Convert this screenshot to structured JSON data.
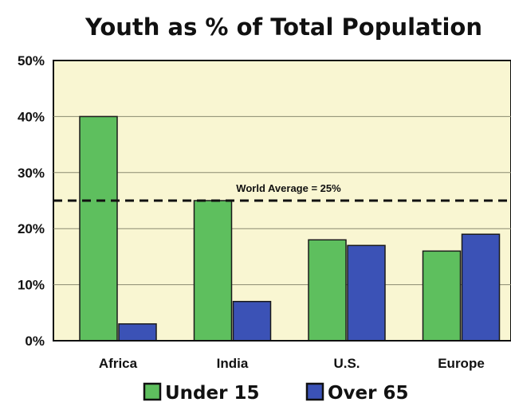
{
  "chart_data": {
    "type": "bar",
    "title": "Youth as % of Total Population",
    "xlabel": "",
    "ylabel": "",
    "categories": [
      "Africa",
      "India",
      "U.S.",
      "Europe"
    ],
    "series": [
      {
        "name": "Under 15",
        "values": [
          40,
          25,
          18,
          16
        ],
        "color": "#5ebf5e"
      },
      {
        "name": "Over 65",
        "values": [
          3,
          7,
          17,
          19
        ],
        "color": "#3b52b6"
      }
    ],
    "ylim": [
      0,
      50
    ],
    "yticks": [
      "0%",
      "10%",
      "20%",
      "30%",
      "40%",
      "50%"
    ],
    "reference_line": {
      "value": 25,
      "label": "World Average = 25%",
      "style": "dashed"
    },
    "grid": true,
    "legend": "bottom",
    "plot_background": "#f9f6d2"
  }
}
